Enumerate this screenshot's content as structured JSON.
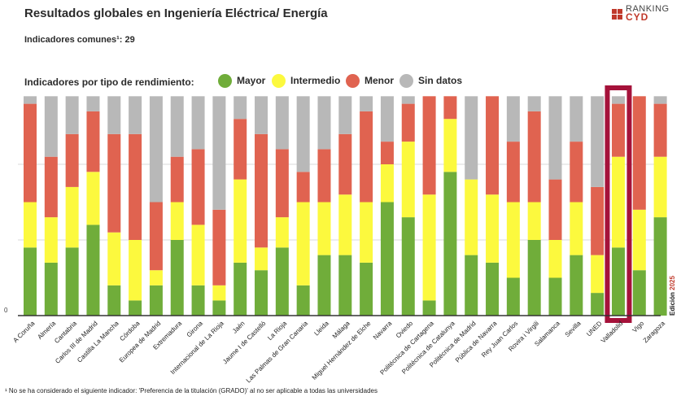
{
  "title": "Resultados globales en Ingeniería Eléctrica/ Energía",
  "subtitle": "Indicadores comunes¹: 29",
  "logo": {
    "line1": "RANKING",
    "line2": "CYD"
  },
  "legend": {
    "title": "Indicadores por tipo de rendimiento:",
    "items": [
      {
        "label": "Mayor",
        "color": "#70ad3a"
      },
      {
        "label": "Intermedio",
        "color": "#fcf93e"
      },
      {
        "label": "Menor",
        "color": "#e06350"
      },
      {
        "label": "Sin datos",
        "color": "#b8b8b8"
      }
    ]
  },
  "edition": {
    "label": "Edición",
    "year": "2025"
  },
  "footnote": "¹ No se ha considerado el siguiente indicador: 'Preferencia de la titulación (GRADO)' al no ser aplicable a todas las universidades",
  "highlight": "Valladolid",
  "chart_data": {
    "type": "bar",
    "stacked": true,
    "total": 29,
    "ylim": [
      0,
      29
    ],
    "yticks": [
      0,
      10,
      20
    ],
    "grid": true,
    "categories": [
      "A Coruña",
      "Almería",
      "Cantabria",
      "Carlos III de Madrid",
      "Castilla La Mancha",
      "Córdoba",
      "Europea de Madrid",
      "Extremadura",
      "Girona",
      "Internacional de La Rioja",
      "Jaén",
      "Jaume I de Castelló",
      "La Rioja",
      "Las Palmas de Gran Canaria",
      "Lleida",
      "Málaga",
      "Miguel Hernández de Elche",
      "Navarra",
      "Oviedo",
      "Politécnica de Cartagena",
      "Politècnica de Catalunya",
      "Politécnica de Madrid",
      "Pública de Navarra",
      "Rey Juan Carlos",
      "Rovira i Virgili",
      "Salamanca",
      "Sevilla",
      "UNED",
      "Valladolid",
      "Vigo",
      "Zaragoza"
    ],
    "series": [
      {
        "name": "Mayor",
        "color": "#70ad3a",
        "values": [
          9,
          7,
          9,
          12,
          4,
          2,
          4,
          10,
          4,
          2,
          7,
          6,
          9,
          4,
          8,
          8,
          7,
          15,
          13,
          2,
          19,
          8,
          7,
          5,
          10,
          5,
          8,
          3,
          9,
          6,
          13
        ]
      },
      {
        "name": "Intermedio",
        "color": "#fcf93e",
        "values": [
          6,
          6,
          8,
          7,
          7,
          8,
          2,
          5,
          8,
          2,
          11,
          3,
          4,
          11,
          7,
          8,
          8,
          5,
          10,
          14,
          7,
          10,
          9,
          10,
          5,
          5,
          7,
          5,
          12,
          8,
          8
        ]
      },
      {
        "name": "Menor",
        "color": "#e06350",
        "values": [
          13,
          8,
          7,
          8,
          13,
          14,
          9,
          6,
          10,
          10,
          8,
          15,
          9,
          4,
          7,
          8,
          12,
          3,
          5,
          13,
          3,
          0,
          13,
          8,
          12,
          8,
          8,
          9,
          7,
          15,
          7
        ]
      },
      {
        "name": "Sin datos",
        "color": "#b8b8b8",
        "values": [
          1,
          8,
          5,
          2,
          5,
          5,
          14,
          8,
          7,
          15,
          3,
          5,
          7,
          10,
          7,
          5,
          2,
          6,
          1,
          0,
          0,
          11,
          0,
          6,
          2,
          11,
          6,
          12,
          1,
          0,
          1
        ]
      }
    ]
  }
}
